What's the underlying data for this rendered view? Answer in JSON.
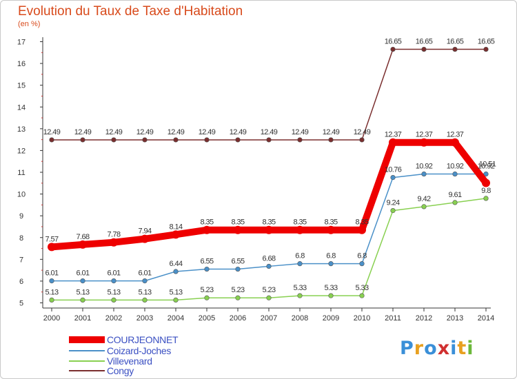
{
  "header": {
    "title": "Evolution du Taux de Taxe d'Habitation",
    "subtitle": "(en %)"
  },
  "chart_data": {
    "type": "line",
    "title": "Evolution du Taux de Taxe d'Habitation",
    "ylabel": "(en %)",
    "xlabel": "",
    "x": [
      "2000",
      "2001",
      "2002",
      "2003",
      "2004",
      "2005",
      "2006",
      "2007",
      "2008",
      "2009",
      "2010",
      "2011",
      "2012",
      "2013",
      "2014"
    ],
    "ylim": [
      5,
      17
    ],
    "yticks": [
      "5",
      "6",
      "7",
      "8",
      "9",
      "10",
      "11",
      "12",
      "13",
      "14",
      "15",
      "16",
      "17"
    ],
    "grid": false,
    "legend_position": "bottom-left",
    "series": [
      {
        "name": "COURJEONNET",
        "color": "#ee0000",
        "values": [
          7.57,
          7.68,
          7.78,
          7.94,
          8.14,
          8.35,
          8.35,
          8.35,
          8.35,
          8.35,
          8.35,
          12.37,
          12.37,
          12.37,
          10.51
        ],
        "labels": [
          "7.57",
          "7.68",
          "7.78",
          "7.94",
          "8.14",
          "8.35",
          "8.35",
          "8.35",
          "8.35",
          "8.35",
          "8.35",
          "12.37",
          "12.37",
          "12.37",
          "10.51"
        ]
      },
      {
        "name": "Coizard-Joches",
        "color": "#4a90c8",
        "values": [
          6.01,
          6.01,
          6.01,
          6.01,
          6.44,
          6.55,
          6.55,
          6.68,
          6.8,
          6.8,
          6.8,
          10.76,
          10.92,
          10.92,
          10.92
        ],
        "labels": [
          "6.01",
          "6.01",
          "6.01",
          "6.01",
          "6.44",
          "6.55",
          "6.55",
          "6.68",
          "6.8",
          "6.8",
          "6.8",
          "10.76",
          "10.92",
          "10.92",
          "10.92"
        ]
      },
      {
        "name": "Villevenard",
        "color": "#88d050",
        "values": [
          5.13,
          5.13,
          5.13,
          5.13,
          5.13,
          5.23,
          5.23,
          5.23,
          5.33,
          5.33,
          5.33,
          9.24,
          9.42,
          9.61,
          9.8
        ],
        "labels": [
          "5.13",
          "5.13",
          "5.13",
          "5.13",
          "5.13",
          "5.23",
          "5.23",
          "5.23",
          "5.33",
          "5.33",
          "5.33",
          "9.24",
          "9.42",
          "9.61",
          "9.8"
        ]
      },
      {
        "name": "Congy",
        "color": "#7a2e2e",
        "values": [
          12.49,
          12.49,
          12.49,
          12.49,
          12.49,
          12.49,
          12.49,
          12.49,
          12.49,
          12.49,
          12.49,
          16.65,
          16.65,
          16.65,
          16.65
        ],
        "labels": [
          "12.49",
          "12.49",
          "12.49",
          "12.49",
          "12.49",
          "12.49",
          "12.49",
          "12.49",
          "12.49",
          "12.49",
          "12.49",
          "16.65",
          "16.65",
          "16.65",
          "16.65"
        ]
      }
    ]
  },
  "legend": {
    "items": [
      {
        "label": "COURJEONNET"
      },
      {
        "label": "Coizard-Joches"
      },
      {
        "label": "Villevenard"
      },
      {
        "label": "Congy"
      }
    ]
  },
  "logo": {
    "text": "Proxiti",
    "letters": [
      "P",
      "r",
      "o",
      "x",
      "i",
      "t",
      "i"
    ],
    "colors": [
      "#3a8fd8",
      "#e8a020",
      "#3a8fd8",
      "#d03030",
      "#3a8fd8",
      "#e8a020",
      "#6cb83a"
    ]
  }
}
